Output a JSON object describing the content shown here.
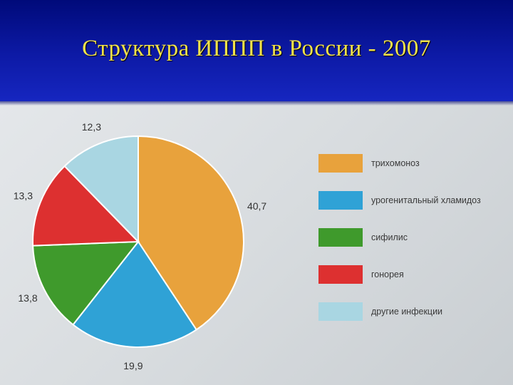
{
  "slide": {
    "title": "Структура ИППП в России - 2007"
  },
  "chart_data": {
    "type": "pie",
    "title": "",
    "categories": [
      "трихомоноз",
      "урогенитальный хламидоз",
      "сифилис",
      "гонорея",
      "другие инфекции"
    ],
    "values": [
      40.7,
      19.9,
      13.8,
      13.3,
      12.3
    ],
    "value_labels": [
      "40,7",
      "19,9",
      "13,8",
      "13,3",
      "12,3"
    ],
    "colors": [
      "#e8a23c",
      "#2fa2d6",
      "#3f9a2c",
      "#dd3030",
      "#a9d6e2"
    ],
    "legend": "right",
    "start_angle": "12 o'clock, clockwise"
  }
}
